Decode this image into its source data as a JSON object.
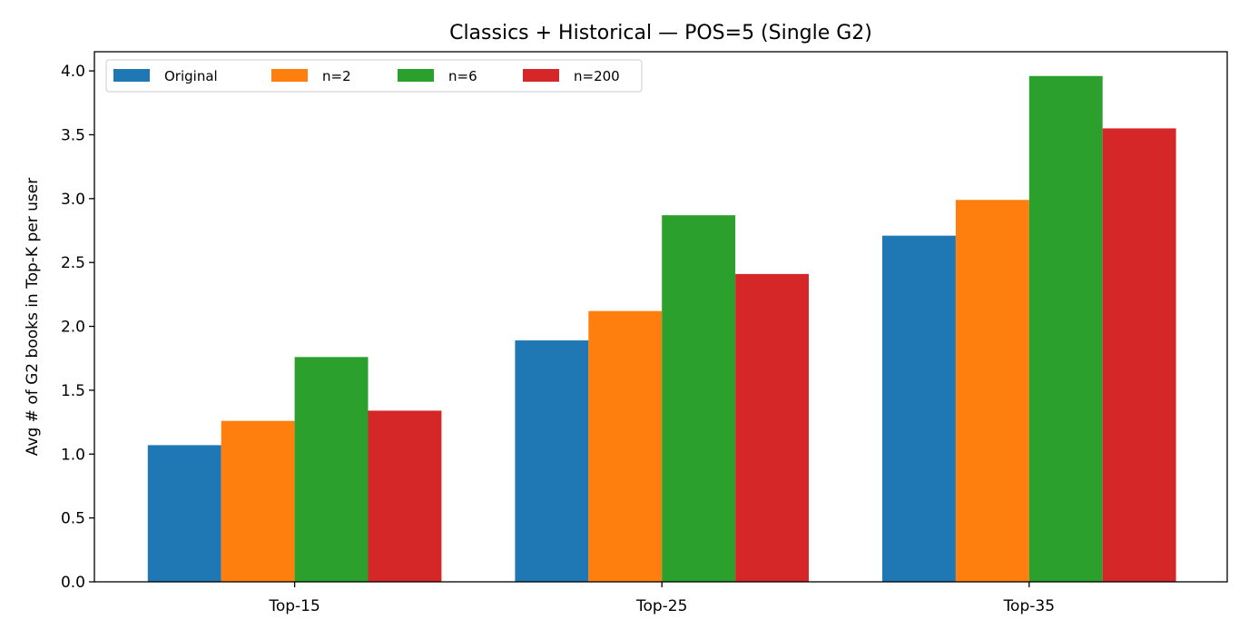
{
  "chart_data": {
    "type": "bar",
    "title": "Classics + Historical — POS=5 (Single G2)",
    "xlabel": "",
    "ylabel": "Avg # of G2 books in Top-K per user",
    "categories": [
      "Top-15",
      "Top-25",
      "Top-35"
    ],
    "ylim": [
      0,
      4.15
    ],
    "yticks": [
      "0.0",
      "0.5",
      "1.0",
      "1.5",
      "2.0",
      "2.5",
      "3.0",
      "3.5",
      "4.0"
    ],
    "legend_position": "upper-left",
    "grid": false,
    "series": [
      {
        "name": "Original",
        "color": "#1f77b4",
        "values": [
          1.07,
          1.89,
          2.71
        ]
      },
      {
        "name": "n=2",
        "color": "#ff7f0e",
        "values": [
          1.26,
          2.12,
          2.99
        ]
      },
      {
        "name": "n=6",
        "color": "#2ca02c",
        "values": [
          1.76,
          2.87,
          3.96
        ]
      },
      {
        "name": "n=200",
        "color": "#d62728",
        "values": [
          1.34,
          2.41,
          3.55
        ]
      }
    ]
  }
}
